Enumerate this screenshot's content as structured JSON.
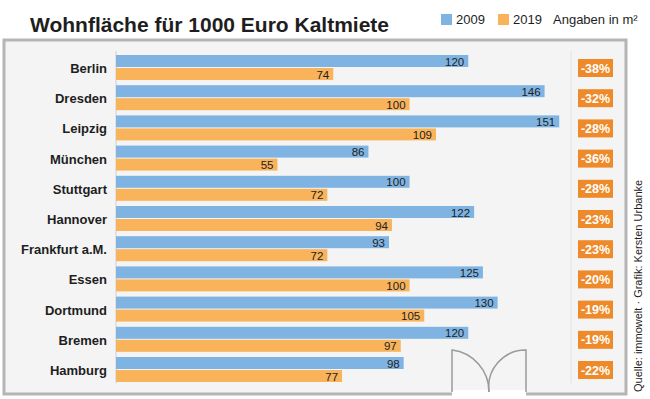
{
  "chart_data": {
    "type": "bar",
    "title": "Wohnfläche für 1000 Euro Kaltmiete",
    "unit_note": "Angaben in m²",
    "source": "Quelle: immowelt · Grafik: Kersten Urbanke",
    "orientation": "horizontal",
    "data_labels": true,
    "tick_labels": false,
    "legend": "top-right",
    "xlim": [
      0,
      155
    ],
    "categories": [
      "Berlin",
      "Dresden",
      "Leipzig",
      "München",
      "Stuttgart",
      "Hannover",
      "Frankfurt a.M.",
      "Essen",
      "Dortmund",
      "Bremen",
      "Hamburg"
    ],
    "series": [
      {
        "name": "2009",
        "color": "#7fb4e2",
        "values": [
          120,
          146,
          151,
          86,
          100,
          122,
          93,
          125,
          130,
          120,
          98
        ]
      },
      {
        "name": "2019",
        "color": "#f8b35b",
        "values": [
          74,
          100,
          109,
          55,
          72,
          94,
          72,
          100,
          105,
          97,
          77
        ]
      }
    ],
    "change_labels": [
      "-38%",
      "-32%",
      "-28%",
      "-36%",
      "-28%",
      "-23%",
      "-23%",
      "-20%",
      "-19%",
      "-19%",
      "-22%"
    ],
    "change_color": "#ee8a2a"
  }
}
